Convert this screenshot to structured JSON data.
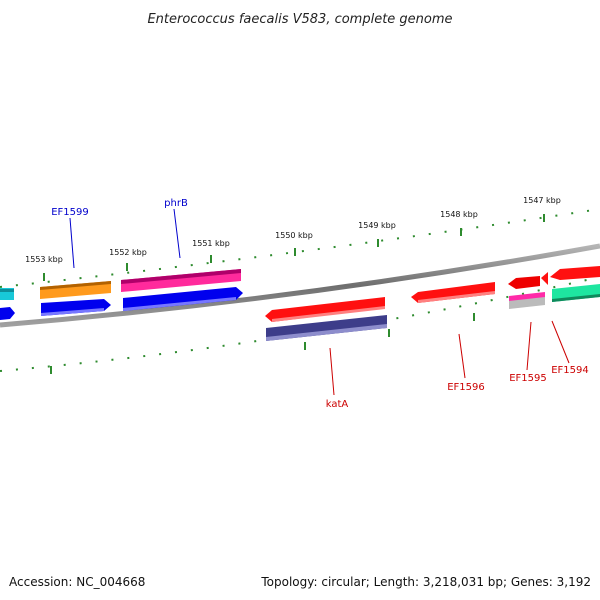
{
  "title": "Enterococcus faecalis V583, complete genome",
  "footer": {
    "accession": "Accession: NC_004668",
    "summary": "Topology: circular; Length: 3,218,031 bp; Genes: 3,192"
  },
  "ticks": [
    "1553 kbp",
    "1552 kbp",
    "1551 kbp",
    "1550 kbp",
    "1549 kbp",
    "1548 kbp",
    "1547 kbp"
  ],
  "gene_labels": {
    "ef1599": "EF1599",
    "phrb": "phrB",
    "kata": "katA",
    "ef1596": "EF1596",
    "ef1595": "EF1595",
    "ef1594": "EF1594"
  },
  "colors": {
    "forward_label": "#0000cc",
    "reverse_label": "#cc0000",
    "tick_marks": "#2e8b2e",
    "backbone": "#888888"
  }
}
